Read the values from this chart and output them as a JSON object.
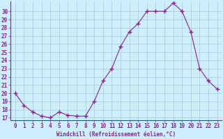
{
  "hours": [
    0,
    1,
    2,
    3,
    4,
    5,
    6,
    7,
    8,
    9,
    10,
    11,
    12,
    13,
    14,
    15,
    16,
    17,
    18,
    19,
    20,
    21,
    22,
    23
  ],
  "values": [
    20.0,
    18.5,
    17.7,
    17.2,
    17.0,
    17.7,
    17.3,
    17.2,
    17.2,
    19.0,
    21.5,
    23.0,
    25.7,
    27.5,
    28.5,
    30.0,
    30.0,
    30.0,
    31.0,
    30.0,
    27.5,
    23.0,
    21.5,
    20.5
  ],
  "line_color": "#882288",
  "marker": "+",
  "marker_size": 4,
  "bg_color": "#cceeff",
  "grid_color": "#aacccc",
  "xlabel": "Windchill (Refroidissement éolien,°C)",
  "tick_color": "#882288",
  "ylim_min": 17,
  "ylim_max": 31,
  "xlim_min": 0,
  "xlim_max": 23,
  "yticks": [
    17,
    18,
    19,
    20,
    21,
    22,
    23,
    24,
    25,
    26,
    27,
    28,
    29,
    30
  ],
  "xticks": [
    0,
    1,
    2,
    3,
    4,
    5,
    6,
    7,
    8,
    9,
    10,
    11,
    12,
    13,
    14,
    15,
    16,
    17,
    18,
    19,
    20,
    21,
    22,
    23
  ],
  "spine_color": "#882288",
  "axis_bottom_color": "#882288",
  "label_fontsize": 5.5,
  "tick_fontsize": 5.5
}
